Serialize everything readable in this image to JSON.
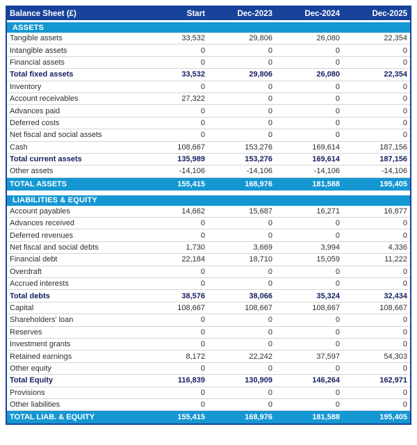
{
  "table": {
    "title": "Balance Sheet (£)",
    "columns": [
      "Start",
      "Dec-2023",
      "Dec-2024",
      "Dec-2025"
    ],
    "colors": {
      "header_bg": "#17439b",
      "section_bg": "#1597d2",
      "subtotal_text": "#172061",
      "body_text": "#2d2d2d",
      "row_border": "#d4d4d4"
    },
    "sections": [
      {
        "title": "ASSETS",
        "rows": [
          {
            "label": "Tangible assets",
            "values": [
              "33,532",
              "29,806",
              "26,080",
              "22,354"
            ],
            "style": "normal"
          },
          {
            "label": "Intangible assets",
            "values": [
              "0",
              "0",
              "0",
              "0"
            ],
            "style": "normal"
          },
          {
            "label": "Financial assets",
            "values": [
              "0",
              "0",
              "0",
              "0"
            ],
            "style": "normal"
          },
          {
            "label": "Total fixed assets",
            "values": [
              "33,532",
              "29,806",
              "26,080",
              "22,354"
            ],
            "style": "subtotal"
          },
          {
            "label": "Inventory",
            "values": [
              "0",
              "0",
              "0",
              "0"
            ],
            "style": "normal"
          },
          {
            "label": "Account receivables",
            "values": [
              "27,322",
              "0",
              "0",
              "0"
            ],
            "style": "normal"
          },
          {
            "label": "Advances paid",
            "values": [
              "0",
              "0",
              "0",
              "0"
            ],
            "style": "normal"
          },
          {
            "label": "Deferred costs",
            "values": [
              "0",
              "0",
              "0",
              "0"
            ],
            "style": "normal"
          },
          {
            "label": "Net fiscal and social assets",
            "values": [
              "0",
              "0",
              "0",
              "0"
            ],
            "style": "normal"
          },
          {
            "label": "Cash",
            "values": [
              "108,667",
              "153,276",
              "169,614",
              "187,156"
            ],
            "style": "normal"
          },
          {
            "label": "Total current assets",
            "values": [
              "135,989",
              "153,276",
              "169,614",
              "187,156"
            ],
            "style": "subtotal"
          },
          {
            "label": "Other assets",
            "values": [
              "-14,106",
              "-14,106",
              "-14,106",
              "-14,106"
            ],
            "style": "normal"
          }
        ],
        "total": {
          "label": "TOTAL ASSETS",
          "values": [
            "155,415",
            "168,976",
            "181,588",
            "195,405"
          ]
        }
      },
      {
        "title": "LIABILITIES & EQUITY",
        "rows": [
          {
            "label": "Account payables",
            "values": [
              "14,662",
              "15,687",
              "16,271",
              "16,877"
            ],
            "style": "normal"
          },
          {
            "label": "Advances received",
            "values": [
              "0",
              "0",
              "0",
              "0"
            ],
            "style": "normal"
          },
          {
            "label": "Deferred revenues",
            "values": [
              "0",
              "0",
              "0",
              "0"
            ],
            "style": "normal"
          },
          {
            "label": "Net fiscal and social debts",
            "values": [
              "1,730",
              "3,669",
              "3,994",
              "4,336"
            ],
            "style": "normal"
          },
          {
            "label": "Financial debt",
            "values": [
              "22,184",
              "18,710",
              "15,059",
              "11,222"
            ],
            "style": "normal"
          },
          {
            "label": "Overdraft",
            "values": [
              "0",
              "0",
              "0",
              "0"
            ],
            "style": "normal"
          },
          {
            "label": "Accrued interests",
            "values": [
              "0",
              "0",
              "0",
              "0"
            ],
            "style": "normal"
          },
          {
            "label": "Total debts",
            "values": [
              "38,576",
              "38,066",
              "35,324",
              "32,434"
            ],
            "style": "subtotal"
          },
          {
            "label": "Capital",
            "values": [
              "108,667",
              "108,667",
              "108,667",
              "108,667"
            ],
            "style": "normal"
          },
          {
            "label": "Shareholders' loan",
            "values": [
              "0",
              "0",
              "0",
              "0"
            ],
            "style": "normal"
          },
          {
            "label": "Reserves",
            "values": [
              "0",
              "0",
              "0",
              "0"
            ],
            "style": "normal"
          },
          {
            "label": "Investment grants",
            "values": [
              "0",
              "0",
              "0",
              "0"
            ],
            "style": "normal"
          },
          {
            "label": "Retained earnings",
            "values": [
              "8,172",
              "22,242",
              "37,597",
              "54,303"
            ],
            "style": "normal"
          },
          {
            "label": "Other equity",
            "values": [
              "0",
              "0",
              "0",
              "0"
            ],
            "style": "normal"
          },
          {
            "label": "Total Equity",
            "values": [
              "116,839",
              "130,909",
              "146,264",
              "162,971"
            ],
            "style": "subtotal"
          },
          {
            "label": "Provisions",
            "values": [
              "0",
              "0",
              "0",
              "0"
            ],
            "style": "normal"
          },
          {
            "label": "Other liabilities",
            "values": [
              "0",
              "0",
              "0",
              "0"
            ],
            "style": "normal"
          }
        ],
        "total": {
          "label": "TOTAL LIAB. & EQUITY",
          "values": [
            "155,415",
            "168,976",
            "181,588",
            "195,405"
          ]
        }
      }
    ]
  }
}
